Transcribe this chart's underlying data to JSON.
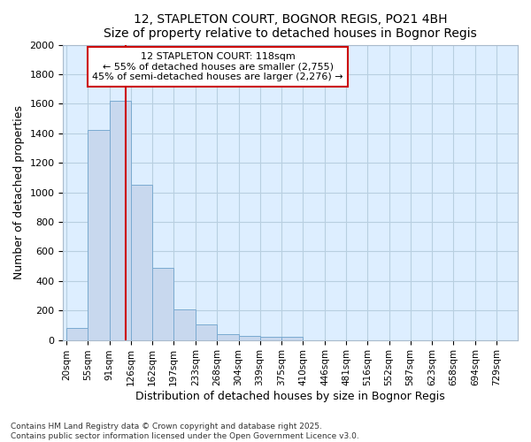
{
  "title1": "12, STAPLETON COURT, BOGNOR REGIS, PO21 4BH",
  "title2": "Size of property relative to detached houses in Bognor Regis",
  "xlabel": "Distribution of detached houses by size in Bognor Regis",
  "ylabel": "Number of detached properties",
  "bar_color": "#c8d8ee",
  "bar_edge_color": "#7aaad0",
  "bins": [
    20,
    55,
    91,
    126,
    162,
    197,
    233,
    268,
    304,
    339,
    375,
    410,
    446,
    481,
    516,
    552,
    587,
    623,
    658,
    694,
    729
  ],
  "heights": [
    80,
    1420,
    1620,
    1050,
    490,
    205,
    105,
    40,
    30,
    20,
    20,
    0,
    0,
    0,
    0,
    0,
    0,
    0,
    0,
    0
  ],
  "red_line_x": 118,
  "annotation_title": "12 STAPLETON COURT: 118sqm",
  "annotation_line1": "← 55% of detached houses are smaller (2,755)",
  "annotation_line2": "45% of semi-detached houses are larger (2,276) →",
  "annotation_box_color": "#ffffff",
  "annotation_edge_color": "#cc0000",
  "red_line_color": "#cc0000",
  "grid_color": "#b8cfe0",
  "background_color": "#ddeeff",
  "footer1": "Contains HM Land Registry data © Crown copyright and database right 2025.",
  "footer2": "Contains public sector information licensed under the Open Government Licence v3.0.",
  "ylim": [
    0,
    2000
  ],
  "yticks": [
    0,
    200,
    400,
    600,
    800,
    1000,
    1200,
    1400,
    1600,
    1800,
    2000
  ]
}
